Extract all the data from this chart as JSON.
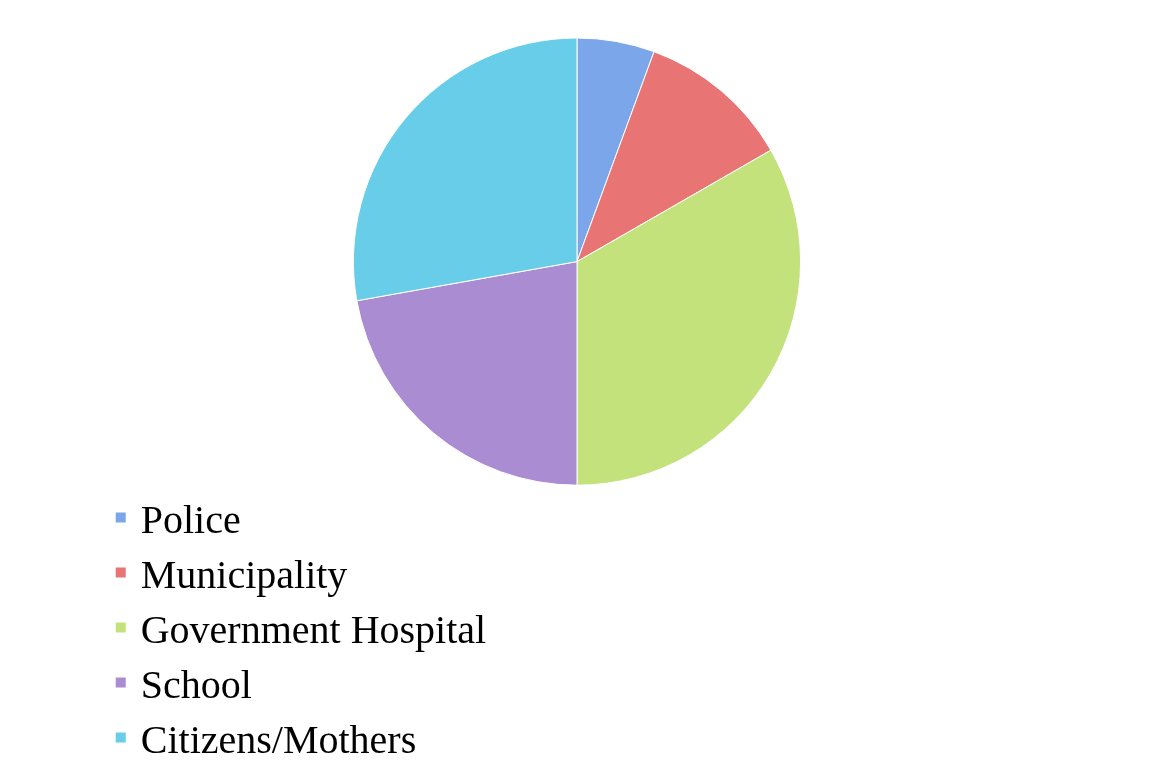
{
  "chart_data": {
    "type": "pie",
    "categories": [
      "Police",
      "Municipality",
      "Government Hospital",
      "School",
      "Citizens/Mothers"
    ],
    "values": [
      5.6,
      11.1,
      33.3,
      22.2,
      27.8
    ],
    "colors": [
      "#7ba7ea",
      "#e87474",
      "#c4e27c",
      "#a98cd2",
      "#68cde8"
    ],
    "legend": "bottom"
  }
}
